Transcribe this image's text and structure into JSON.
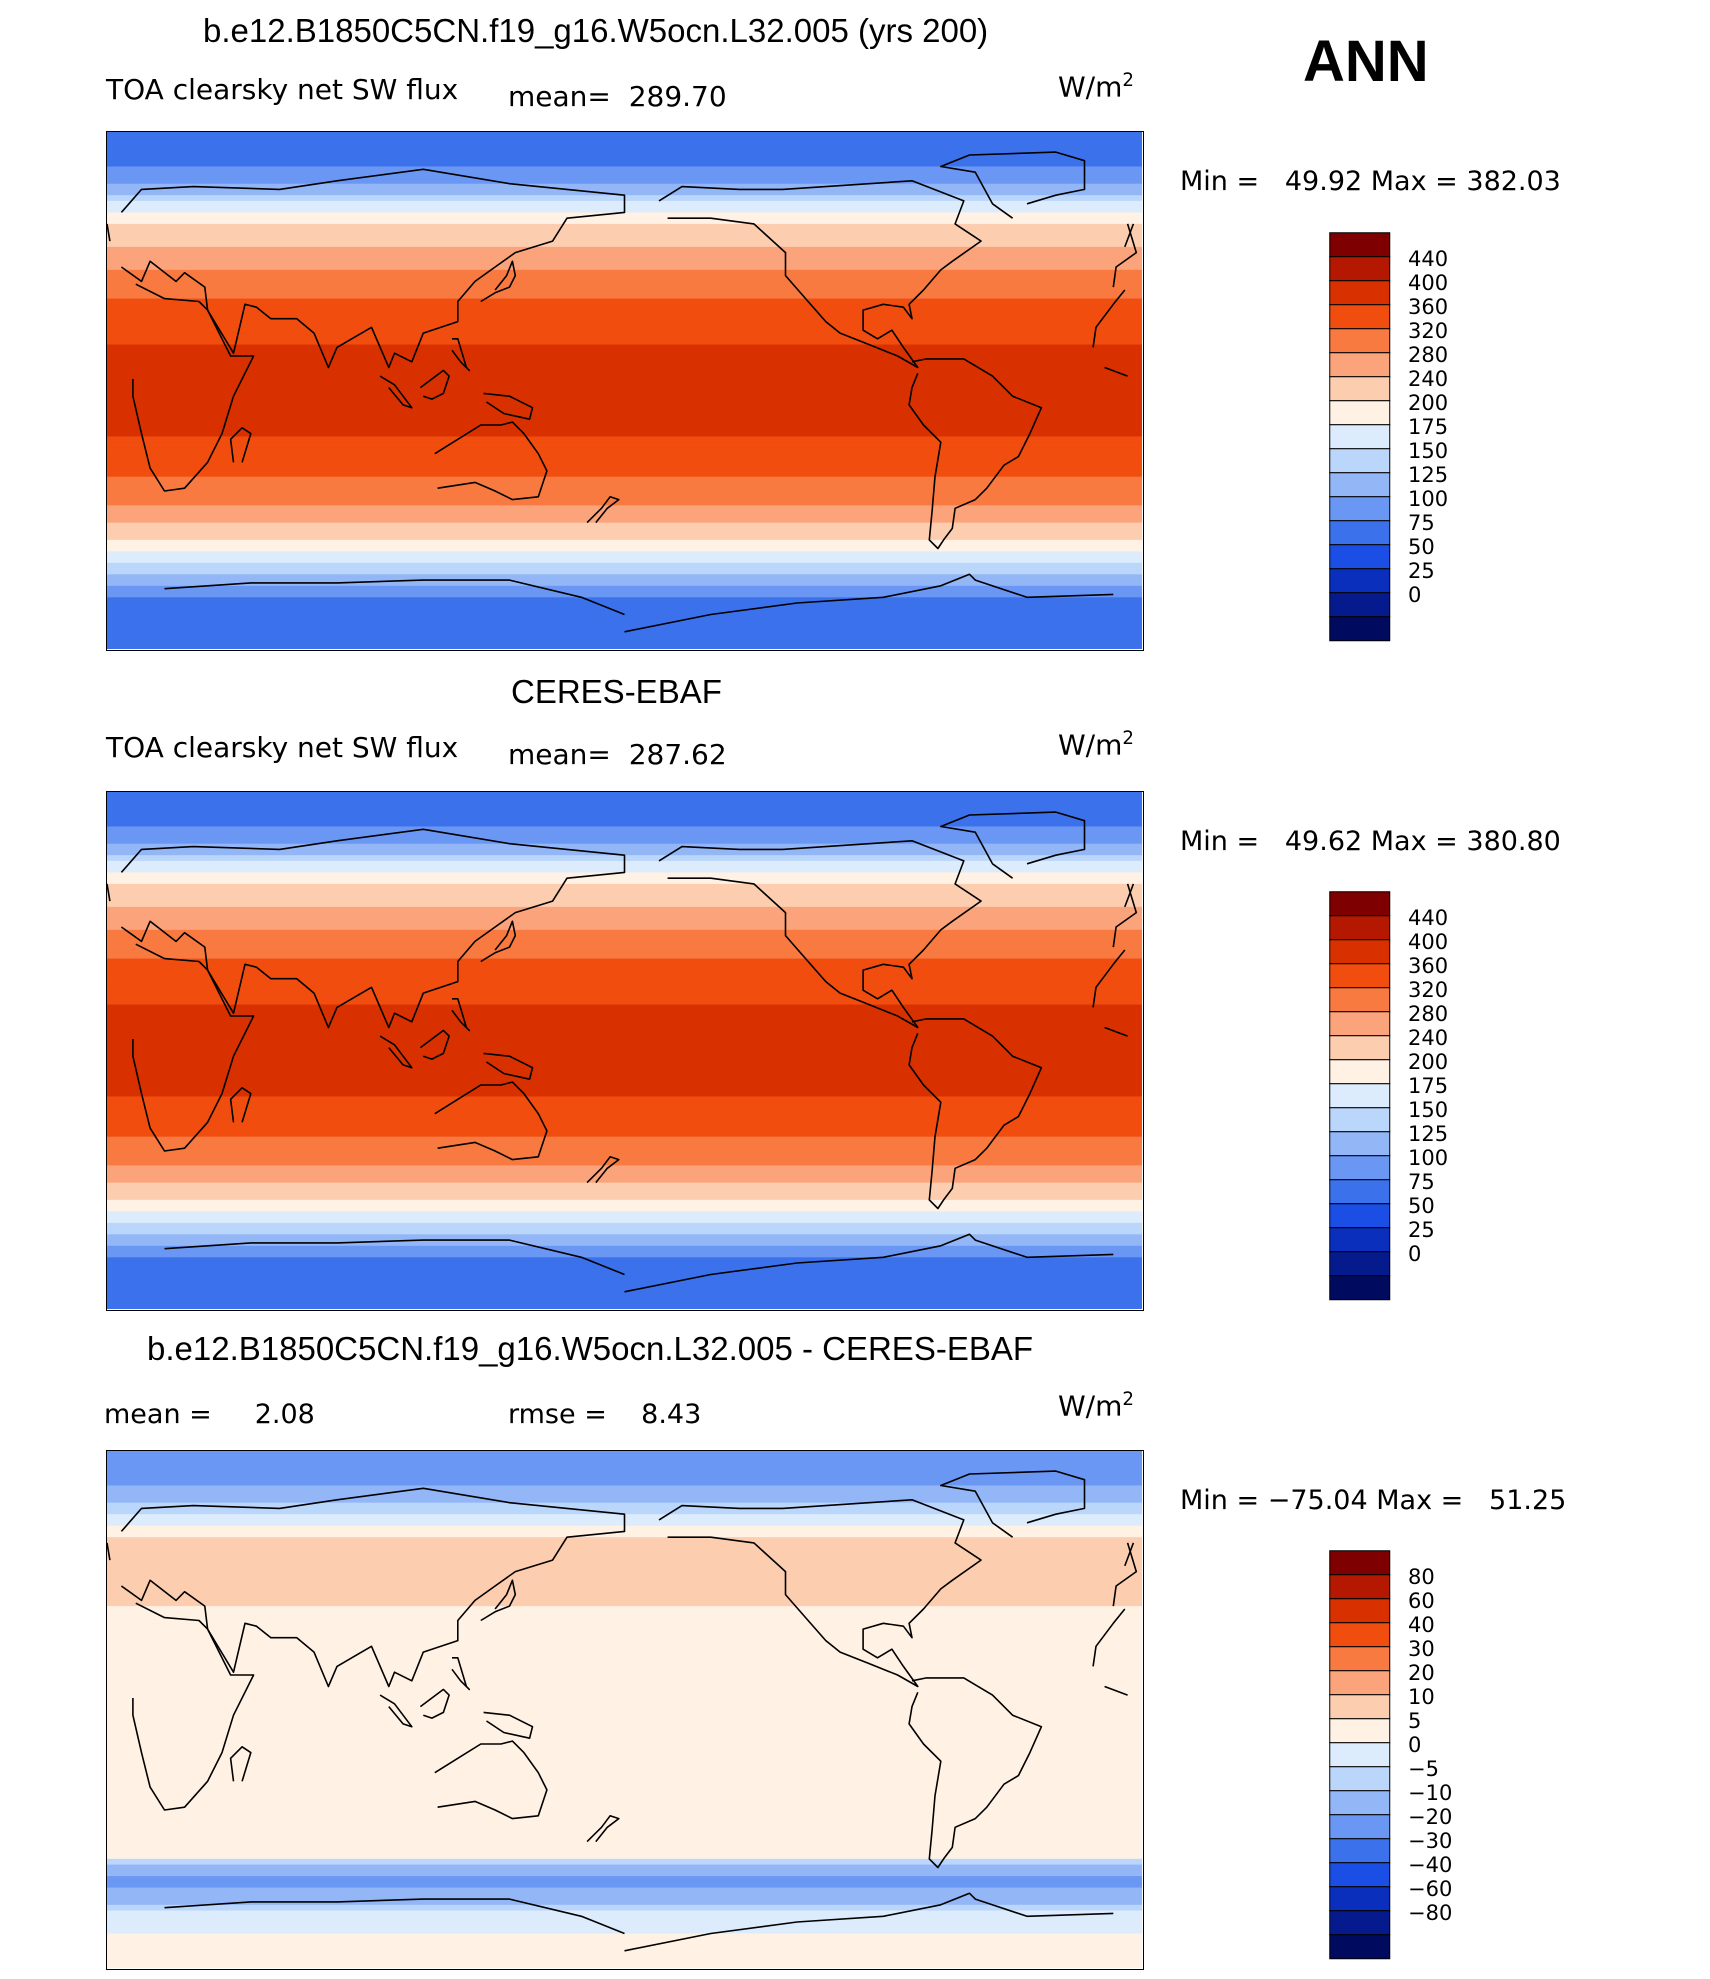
{
  "header": {
    "season": "ANN"
  },
  "panels": [
    {
      "title": "b.e12.B1850C5CN.f19_g16.W5ocn.L32.005 (yrs 200)",
      "variable": "TOA clearsky net SW flux",
      "mean_label": "mean=",
      "mean_value": "289.70",
      "units_base": "W/m",
      "units_exp": "2",
      "min_label": "Min =",
      "min_value": "49.92",
      "max_label": "Max =",
      "max_value": "382.03"
    },
    {
      "title": "CERES-EBAF",
      "variable": "TOA clearsky net SW flux",
      "mean_label": "mean=",
      "mean_value": "287.62",
      "units_base": "W/m",
      "units_exp": "2",
      "min_label": "Min =",
      "min_value": "49.62",
      "max_label": "Max =",
      "max_value": "380.80"
    },
    {
      "title": "b.e12.B1850C5CN.f19_g16.W5ocn.L32.005 - CERES-EBAF",
      "mean_label": "mean =",
      "mean_value": "2.08",
      "rmse_label": "rmse =",
      "rmse_value": "8.43",
      "units_base": "W/m",
      "units_exp": "2",
      "min_label": "Min =",
      "min_value": "−75.04",
      "max_label": "Max =",
      "max_value": "51.25"
    }
  ],
  "chart_data": [
    {
      "type": "heatmap",
      "title": "b.e12.B1850C5CN.f19_g16.W5ocn.L32.005 (yrs 200)",
      "subtitle": "TOA clearsky net SW flux",
      "units": "W/m2",
      "mean": 289.7,
      "min": 49.92,
      "max": 382.03,
      "colorbar_labels": [
        "440",
        "400",
        "360",
        "320",
        "280",
        "240",
        "200",
        "175",
        "150",
        "125",
        "100",
        "75",
        "50",
        "25",
        "0"
      ],
      "colors": [
        "#7f0000",
        "#b51800",
        "#d93000",
        "#f04d0f",
        "#f87a40",
        "#fba37a",
        "#fdcdb0",
        "#fff1e4",
        "#dcecfd",
        "#bbd6fb",
        "#93b6f7",
        "#6b97f4",
        "#3c71ec",
        "#1a4ee4",
        "#0a2fbd",
        "#051a8c",
        "#000a5e"
      ],
      "lat_profile": [
        {
          "lat": 90,
          "value": 55
        },
        {
          "lat": 80,
          "value": 60
        },
        {
          "lat": 70,
          "value": 110
        },
        {
          "lat": 60,
          "value": 190
        },
        {
          "lat": 50,
          "value": 240
        },
        {
          "lat": 40,
          "value": 290
        },
        {
          "lat": 30,
          "value": 330
        },
        {
          "lat": 20,
          "value": 350
        },
        {
          "lat": 10,
          "value": 370
        },
        {
          "lat": 0,
          "value": 375
        },
        {
          "lat": -10,
          "value": 370
        },
        {
          "lat": -20,
          "value": 350
        },
        {
          "lat": -30,
          "value": 320
        },
        {
          "lat": -40,
          "value": 280
        },
        {
          "lat": -50,
          "value": 220
        },
        {
          "lat": -60,
          "value": 150
        },
        {
          "lat": -70,
          "value": 80
        },
        {
          "lat": -80,
          "value": 55
        },
        {
          "lat": -90,
          "value": 50
        }
      ]
    },
    {
      "type": "heatmap",
      "title": "CERES-EBAF",
      "subtitle": "TOA clearsky net SW flux",
      "units": "W/m2",
      "mean": 287.62,
      "min": 49.62,
      "max": 380.8,
      "colorbar_labels": [
        "440",
        "400",
        "360",
        "320",
        "280",
        "240",
        "200",
        "175",
        "150",
        "125",
        "100",
        "75",
        "50",
        "25",
        "0"
      ],
      "colors": [
        "#7f0000",
        "#b51800",
        "#d93000",
        "#f04d0f",
        "#f87a40",
        "#fba37a",
        "#fdcdb0",
        "#fff1e4",
        "#dcecfd",
        "#bbd6fb",
        "#93b6f7",
        "#6b97f4",
        "#3c71ec",
        "#1a4ee4",
        "#0a2fbd",
        "#051a8c",
        "#000a5e"
      ],
      "lat_profile": [
        {
          "lat": 90,
          "value": 55
        },
        {
          "lat": 80,
          "value": 60
        },
        {
          "lat": 70,
          "value": 110
        },
        {
          "lat": 60,
          "value": 190
        },
        {
          "lat": 50,
          "value": 240
        },
        {
          "lat": 40,
          "value": 290
        },
        {
          "lat": 30,
          "value": 330
        },
        {
          "lat": 20,
          "value": 350
        },
        {
          "lat": 10,
          "value": 370
        },
        {
          "lat": 0,
          "value": 375
        },
        {
          "lat": -10,
          "value": 370
        },
        {
          "lat": -20,
          "value": 350
        },
        {
          "lat": -30,
          "value": 320
        },
        {
          "lat": -40,
          "value": 280
        },
        {
          "lat": -50,
          "value": 220
        },
        {
          "lat": -60,
          "value": 150
        },
        {
          "lat": -70,
          "value": 80
        },
        {
          "lat": -80,
          "value": 55
        },
        {
          "lat": -90,
          "value": 50
        }
      ]
    },
    {
      "type": "heatmap",
      "title": "b.e12.B1850C5CN.f19_g16.W5ocn.L32.005 - CERES-EBAF",
      "units": "W/m2",
      "mean": 2.08,
      "rmse": 8.43,
      "min": -75.04,
      "max": 51.25,
      "colorbar_labels": [
        "80",
        "60",
        "40",
        "30",
        "20",
        "10",
        "5",
        "0",
        "−5",
        "−10",
        "−20",
        "−30",
        "−40",
        "−60",
        "−80"
      ],
      "colors": [
        "#7f0000",
        "#b51800",
        "#d93000",
        "#f04d0f",
        "#f87a40",
        "#fba37a",
        "#fdcdb0",
        "#fff1e4",
        "#dcecfd",
        "#bbd6fb",
        "#93b6f7",
        "#6b97f4",
        "#3c71ec",
        "#1a4ee4",
        "#0a2fbd",
        "#051a8c",
        "#000a5e"
      ],
      "lat_profile": [
        {
          "lat": 90,
          "value": -30
        },
        {
          "lat": 80,
          "value": -25
        },
        {
          "lat": 70,
          "value": -8
        },
        {
          "lat": 60,
          "value": 5
        },
        {
          "lat": 50,
          "value": 8
        },
        {
          "lat": 40,
          "value": 6
        },
        {
          "lat": 30,
          "value": 3
        },
        {
          "lat": 20,
          "value": 2
        },
        {
          "lat": 10,
          "value": 1
        },
        {
          "lat": 0,
          "value": 1
        },
        {
          "lat": -10,
          "value": 1
        },
        {
          "lat": -20,
          "value": 2
        },
        {
          "lat": -30,
          "value": 2
        },
        {
          "lat": -40,
          "value": 1
        },
        {
          "lat": -50,
          "value": 3
        },
        {
          "lat": -60,
          "value": -25
        },
        {
          "lat": -70,
          "value": -5
        },
        {
          "lat": -80,
          "value": 2
        },
        {
          "lat": -90,
          "value": 2
        }
      ]
    }
  ]
}
